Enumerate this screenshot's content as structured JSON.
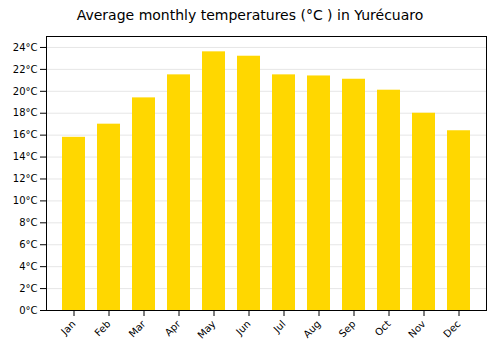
{
  "chart_data": {
    "type": "bar",
    "title": "Average monthly temperatures (°C ) in Yurécuaro",
    "categories": [
      "Jan",
      "Feb",
      "Mar",
      "Apr",
      "May",
      "Jun",
      "Jul",
      "Aug",
      "Sep",
      "Oct",
      "Nov",
      "Dec"
    ],
    "values": [
      15.8,
      17.0,
      19.4,
      21.5,
      23.6,
      23.2,
      21.5,
      21.4,
      21.1,
      20.1,
      18.0,
      16.4
    ],
    "color": "#FFD700",
    "ylim": [
      0,
      25
    ],
    "yticks": [
      {
        "value": 0,
        "label": "0°C"
      },
      {
        "value": 2,
        "label": "2°C"
      },
      {
        "value": 4,
        "label": "4°C"
      },
      {
        "value": 6,
        "label": "6°C"
      },
      {
        "value": 8,
        "label": "8°C"
      },
      {
        "value": 10,
        "label": "10°C"
      },
      {
        "value": 12,
        "label": "12°C"
      },
      {
        "value": 14,
        "label": "14°C"
      },
      {
        "value": 16,
        "label": "16°C"
      },
      {
        "value": 18,
        "label": "18°C"
      },
      {
        "value": 20,
        "label": "20°C"
      },
      {
        "value": 22,
        "label": "22°C"
      },
      {
        "value": 24,
        "label": "24°C"
      }
    ],
    "grid": true
  }
}
